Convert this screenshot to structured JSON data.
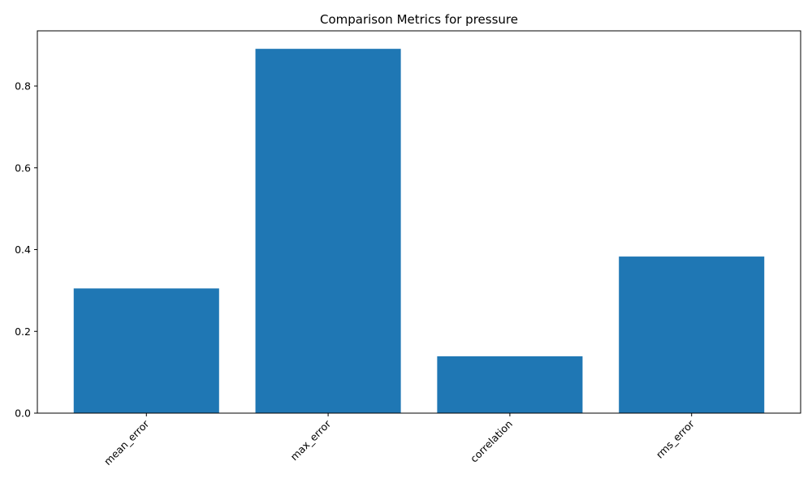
{
  "chart_data": {
    "type": "bar",
    "title": "Comparison Metrics for pressure",
    "xlabel": "",
    "ylabel": "",
    "categories": [
      "mean_error",
      "max_error",
      "correlation",
      "rms_error"
    ],
    "values": [
      0.305,
      0.891,
      0.139,
      0.383
    ],
    "ylim": [
      0,
      0.935
    ],
    "yticks": [
      0.0,
      0.2,
      0.4,
      0.6,
      0.8
    ],
    "ytick_labels": [
      "0.0",
      "0.2",
      "0.4",
      "0.6",
      "0.8"
    ],
    "xtick_rotation": "45 degrees",
    "grid": false,
    "legend": "none",
    "bar_color": "#1f77b4"
  }
}
